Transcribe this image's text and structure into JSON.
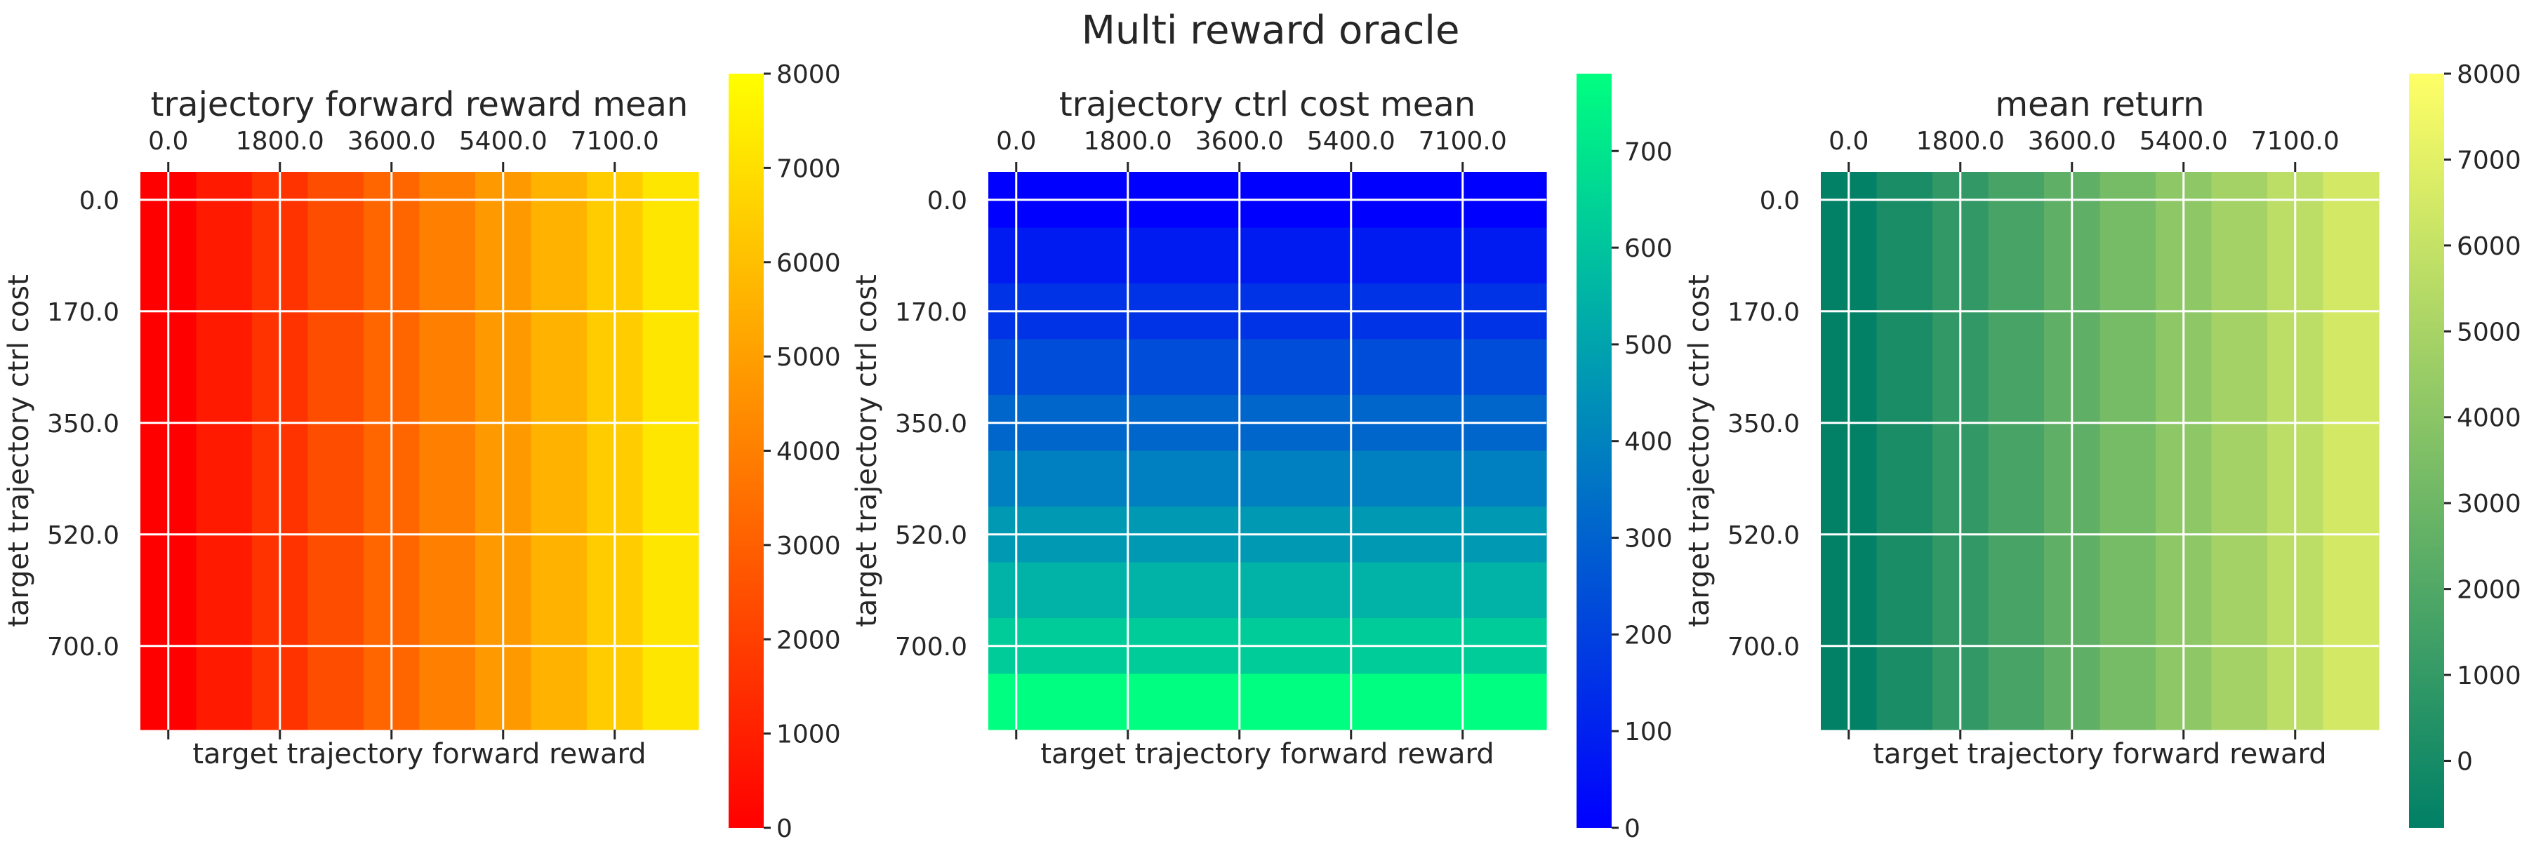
{
  "figure": {
    "suptitle": "Multi reward oracle"
  },
  "chart_data": [
    {
      "type": "heatmap",
      "title": "trajectory forward reward mean",
      "xlabel": "target trajectory forward reward",
      "ylabel": "target trajectory ctrl cost",
      "x_tick_labels": [
        "0.0",
        "1800.0",
        "3600.0",
        "5400.0",
        "7100.0"
      ],
      "y_tick_labels": [
        "0.0",
        "170.0",
        "350.0",
        "520.0",
        "700.0"
      ],
      "x_tick_cells": [
        0,
        2,
        4,
        6,
        8
      ],
      "y_tick_cells": [
        0,
        2,
        4,
        6,
        8
      ],
      "n_cols": 10,
      "n_rows": 10,
      "varies_along": "x",
      "cell_values": [
        0,
        800,
        1600,
        2400,
        3200,
        4000,
        4800,
        5600,
        6400,
        7200
      ],
      "colormap": [
        "#ff0000",
        "#ffff00"
      ],
      "colorbar": {
        "min": 0,
        "max": 8000,
        "ticks": [
          "0",
          "1000",
          "2000",
          "3000",
          "4000",
          "5000",
          "6000",
          "7000",
          "8000"
        ]
      },
      "grid": true
    },
    {
      "type": "heatmap",
      "title": "trajectory ctrl cost mean",
      "xlabel": "target trajectory forward reward",
      "ylabel": "target trajectory ctrl cost",
      "x_tick_labels": [
        "0.0",
        "1800.0",
        "3600.0",
        "5400.0",
        "7100.0"
      ],
      "y_tick_labels": [
        "0.0",
        "170.0",
        "350.0",
        "520.0",
        "700.0"
      ],
      "x_tick_cells": [
        0,
        2,
        4,
        6,
        8
      ],
      "y_tick_cells": [
        0,
        2,
        4,
        6,
        8
      ],
      "n_cols": 10,
      "n_rows": 10,
      "varies_along": "y",
      "cell_values": [
        0,
        78,
        156,
        234,
        312,
        390,
        468,
        546,
        624,
        780
      ],
      "colormap": [
        "#0000ff",
        "#00ff80"
      ],
      "colorbar": {
        "min": 0,
        "max": 780,
        "ticks": [
          "0",
          "100",
          "200",
          "300",
          "400",
          "500",
          "600",
          "700"
        ]
      },
      "grid": true
    },
    {
      "type": "heatmap",
      "title": "mean return",
      "xlabel": "target trajectory forward reward",
      "ylabel": "target trajectory ctrl cost",
      "x_tick_labels": [
        "0.0",
        "1800.0",
        "3600.0",
        "5400.0",
        "7100.0"
      ],
      "y_tick_labels": [
        "0.0",
        "170.0",
        "350.0",
        "520.0",
        "700.0"
      ],
      "x_tick_cells": [
        0,
        2,
        4,
        6,
        8
      ],
      "y_tick_cells": [
        0,
        2,
        4,
        6,
        8
      ],
      "n_cols": 10,
      "n_rows": 10,
      "varies_along": "x",
      "cell_values": [
        -700,
        100,
        900,
        1700,
        2500,
        3300,
        4100,
        4900,
        5700,
        6500
      ],
      "colormap": [
        "#008066",
        "#ffff66"
      ],
      "colorbar": {
        "min": -780,
        "max": 8000,
        "ticks": [
          "0",
          "1000",
          "2000",
          "3000",
          "4000",
          "5000",
          "6000",
          "7000",
          "8000"
        ]
      },
      "grid": true
    }
  ]
}
